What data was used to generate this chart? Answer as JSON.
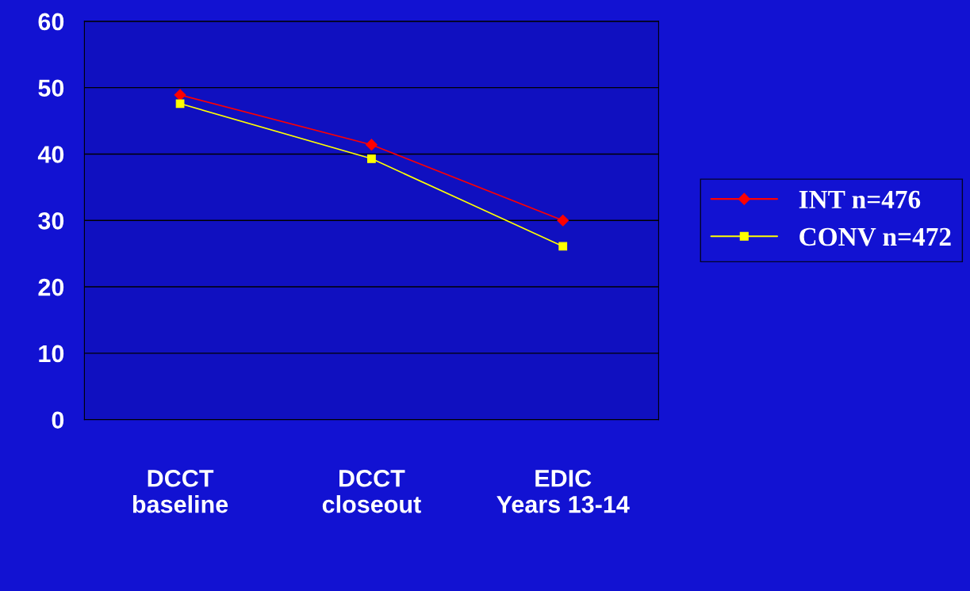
{
  "chart_data": {
    "type": "line",
    "categories": [
      "DCCT\nbaseline",
      "DCCT\ncloseout",
      "EDIC\nYears 13-14"
    ],
    "series": [
      {
        "name": "INT n=476",
        "color": "#ff0000",
        "marker": "diamond",
        "values": [
          48.9,
          41.4,
          30.0
        ]
      },
      {
        "name": "CONV n=472",
        "color": "#ffff00",
        "marker": "square",
        "values": [
          47.6,
          39.3,
          26.1
        ]
      }
    ],
    "ylim": [
      0,
      60
    ],
    "yticks": [
      0,
      10,
      20,
      30,
      40,
      50,
      60
    ],
    "grid": "y",
    "legend": "right",
    "line_style": "solid"
  }
}
